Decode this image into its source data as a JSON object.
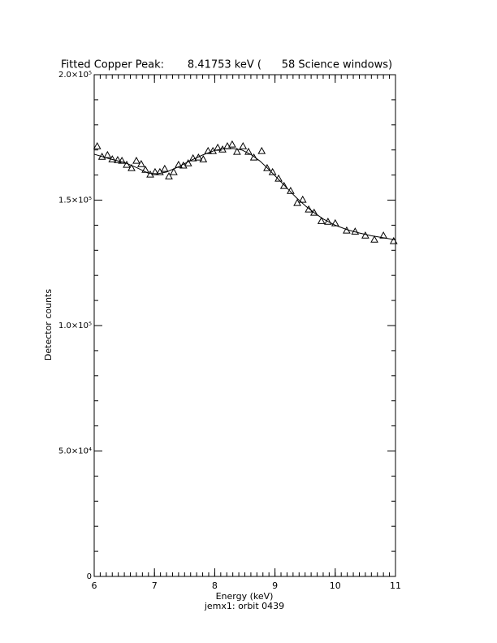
{
  "chart_data": {
    "type": "scatter",
    "title": "Fitted Copper Peak:       8.41753 keV (      58 Science windows)",
    "xlabel": "Energy (keV)",
    "subcaption": "jemx1: orbit 0439",
    "ylabel": "Detector counts",
    "xlim": [
      6,
      11
    ],
    "ylim": [
      0,
      200000
    ],
    "xticks": [
      6,
      7,
      8,
      9,
      10,
      11
    ],
    "yticks": [
      0,
      {
        "value": 50000,
        "label": "5.0×10⁴"
      },
      {
        "value": 100000,
        "label": "1.0×10⁵"
      },
      {
        "value": 150000,
        "label": "1.5×10⁵"
      },
      {
        "value": 200000,
        "label": "2.0×10⁵"
      }
    ],
    "xminor_step": 0.1,
    "yminor_step": 10000,
    "series": [
      {
        "mode": "markers",
        "marker": "triangle",
        "color": "#000000",
        "x": [
          6.05,
          6.13,
          6.22,
          6.3,
          6.39,
          6.46,
          6.54,
          6.62,
          6.7,
          6.78,
          6.85,
          6.93,
          7.01,
          7.09,
          7.17,
          7.24,
          7.32,
          7.4,
          7.48,
          7.56,
          7.64,
          7.73,
          7.81,
          7.89,
          7.97,
          8.05,
          8.13,
          8.21,
          8.29,
          8.37,
          8.47,
          8.56,
          8.65,
          8.78,
          8.87,
          8.96,
          9.06,
          9.15,
          9.26,
          9.37,
          9.46,
          9.56,
          9.65,
          9.77,
          9.88,
          10.0,
          10.19,
          10.33,
          10.5,
          10.65,
          10.8,
          10.97
        ],
        "values": [
          171500,
          167300,
          168000,
          166300,
          166000,
          165700,
          164100,
          162800,
          165700,
          164400,
          162100,
          160200,
          161200,
          161200,
          162500,
          159500,
          161200,
          164100,
          163800,
          164700,
          166700,
          167000,
          166300,
          169600,
          169600,
          170900,
          170200,
          171500,
          172200,
          169300,
          171500,
          169300,
          167000,
          169600,
          162800,
          161200,
          158600,
          155700,
          153700,
          148900,
          150200,
          146300,
          145000,
          141700,
          141400,
          140800,
          137900,
          137500,
          135900,
          134300,
          135900,
          133700
        ]
      },
      {
        "mode": "line",
        "color": "#000000",
        "x": [
          6.0,
          6.25,
          6.5,
          6.7,
          6.9,
          7.05,
          7.2,
          7.4,
          7.6,
          7.8,
          8.0,
          8.15,
          8.3,
          8.45,
          8.6,
          8.75,
          8.9,
          9.05,
          9.2,
          9.35,
          9.5,
          9.65,
          9.8,
          10.0,
          10.2,
          10.4,
          10.6,
          10.8,
          11.0
        ],
        "values": [
          168300,
          166500,
          165000,
          163000,
          160700,
          160500,
          161200,
          163300,
          165800,
          168000,
          169800,
          170500,
          170600,
          170000,
          168200,
          165600,
          162200,
          158500,
          154800,
          151100,
          147800,
          145000,
          142500,
          140000,
          138200,
          136900,
          135800,
          135000,
          134200
        ]
      }
    ]
  }
}
